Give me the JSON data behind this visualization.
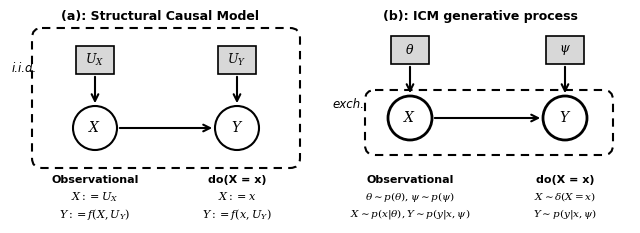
{
  "title_a": "(a): Structural Causal Model",
  "title_b": "(b): ICM generative process",
  "iid_label": "\\textit{i.i.d.}",
  "exch_label": "\\textit{exch.}",
  "obs_label": "\\textbf{Observational}",
  "do_label": "\\textbf{do(X = x)}",
  "panel_a": {
    "UX_label": "$U_X$",
    "UY_label": "$U_Y$",
    "X_label": "$X$",
    "Y_label": "$Y$",
    "eq1_obs": "$X := U_X$",
    "eq2_obs": "$Y := f(X, U_Y)$",
    "eq1_do": "$X := x$",
    "eq2_do": "$Y := f(x, U_Y)$"
  },
  "panel_b": {
    "theta_label": "$\\theta$",
    "psi_label": "$\\psi$",
    "X_label": "$X$",
    "Y_label": "$Y$",
    "eq1_obs": "$\\theta \\sim p(\\theta), \\psi \\sim p(\\psi)$",
    "eq2_obs": "$X \\sim p(x|\\theta), Y \\sim p(y|x, \\psi)$",
    "eq1_do": "$X \\sim \\delta(X = x)$",
    "eq2_do": "$Y \\sim p(y|x, \\psi)$"
  },
  "bg_color": "#ffffff",
  "node_face": "#ffffff",
  "box_face": "#d8d8d8",
  "arrow_color": "#000000",
  "figsize": [
    6.4,
    2.33
  ],
  "dpi": 100
}
